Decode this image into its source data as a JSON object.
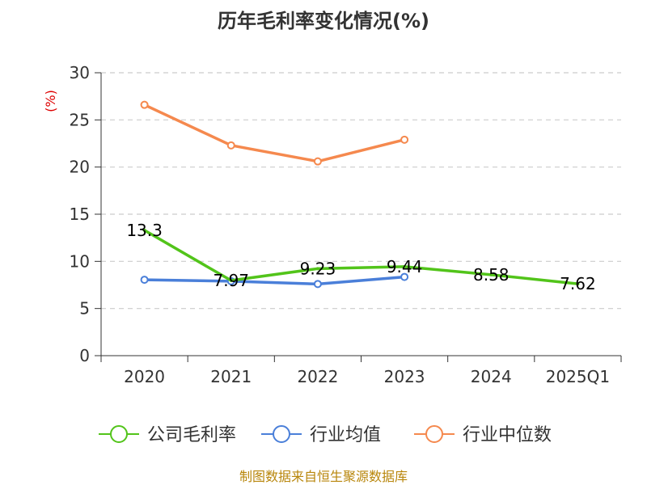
{
  "chart_data": {
    "type": "line",
    "title": "历年毛利率变化情况(%)",
    "ylabel": "(%)",
    "xlabel": "",
    "categories": [
      "2020",
      "2021",
      "2022",
      "2023",
      "2024",
      "2025Q1"
    ],
    "ylim": [
      0,
      30
    ],
    "yticks": [
      0,
      5,
      10,
      15,
      20,
      25,
      30
    ],
    "grid": true,
    "legend_position": "bottom",
    "series": [
      {
        "name": "公司毛利率",
        "color": "#52c41a",
        "values": [
          13.3,
          7.97,
          9.23,
          9.44,
          8.58,
          7.62
        ],
        "labels": [
          "13.3",
          "7.97",
          "9.23",
          "9.44",
          "8.58",
          "7.62"
        ]
      },
      {
        "name": "行业均值",
        "color": "#4a7fd9",
        "values": [
          8.05,
          7.9,
          7.6,
          8.35,
          null,
          null
        ]
      },
      {
        "name": "行业中位数",
        "color": "#f5894e",
        "values": [
          26.6,
          22.3,
          20.6,
          22.9,
          null,
          null
        ]
      }
    ]
  },
  "source_note": "制图数据来自恒生聚源数据库"
}
